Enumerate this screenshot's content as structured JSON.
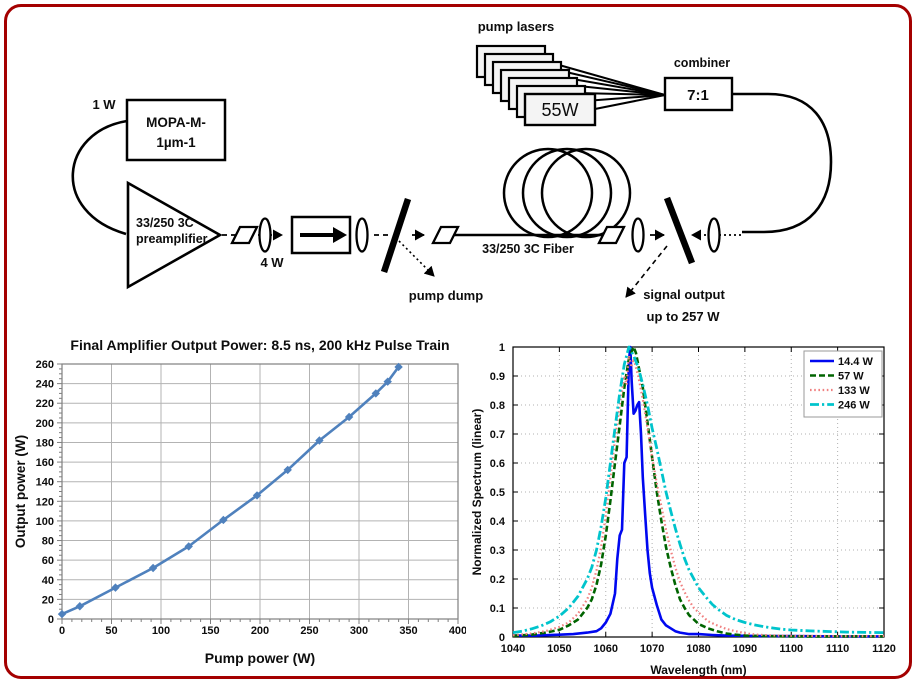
{
  "figure": {
    "background": "#ffffff",
    "border_color": "#a40000"
  },
  "diagram": {
    "labels": {
      "seed_power": "1 W",
      "mopa_box": [
        "MOPA-M-",
        "1µm-1"
      ],
      "preamp": [
        "33/250 3C",
        "preamplifier"
      ],
      "preamp_output_power": "4 W",
      "pump_dump": "pump dump",
      "gain_fiber": "33/250 3C Fiber",
      "pump_lasers": "pump lasers",
      "pump_laser_power": "55W",
      "combiner": "combiner",
      "combiner_ratio": "7:1",
      "signal_output": "signal output",
      "signal_output_power": "up to 257 W"
    }
  },
  "chart_data": [
    {
      "id": "final-amplifier-output-power",
      "type": "line",
      "title": "Final Amplifier Output Power: 8.5 ns, 200 kHz Pulse Train",
      "xlabel": "Pump power (W)",
      "ylabel": "Output power (W)",
      "xlim": [
        0,
        400
      ],
      "ylim": [
        0,
        260
      ],
      "xticks": [
        0,
        50,
        100,
        150,
        200,
        250,
        300,
        350,
        400
      ],
      "xticklabels": [
        "0",
        "50",
        "100",
        "150",
        "200",
        "250",
        "300",
        "350",
        "400"
      ],
      "yticks": [
        0,
        20,
        40,
        60,
        80,
        100,
        120,
        140,
        160,
        180,
        200,
        220,
        240,
        260
      ],
      "yticklabels": [
        "0",
        "20",
        "40",
        "60",
        "80",
        "100",
        "120",
        "140",
        "160",
        "180",
        "200",
        "220",
        "240",
        "260"
      ],
      "grid": "solid",
      "legend": false,
      "series": [
        {
          "name": "Output power",
          "color": "#4f81bd",
          "style": "solid",
          "width": 2.6,
          "marker": "diamond",
          "x": [
            0,
            18,
            54,
            92,
            128,
            163,
            197,
            228,
            260,
            290,
            317,
            329,
            340
          ],
          "y": [
            5,
            13,
            32,
            52,
            74,
            101,
            126,
            152,
            182,
            206,
            230,
            242,
            257
          ]
        }
      ]
    },
    {
      "id": "output-spectra",
      "type": "line",
      "title": "",
      "xlabel": "Wavelength (nm)",
      "ylabel": "Normalized Spectrum (linear)",
      "xlim": [
        1040,
        1120
      ],
      "ylim": [
        0,
        1
      ],
      "xticks": [
        1040,
        1050,
        1060,
        1070,
        1080,
        1090,
        1100,
        1110,
        1120
      ],
      "xticklabels": [
        "1040",
        "1050",
        "1060",
        "1070",
        "1080",
        "1090",
        "1100",
        "1110",
        "1120"
      ],
      "yticks": [
        0,
        0.1,
        0.2,
        0.3,
        0.4,
        0.5,
        0.6,
        0.7,
        0.8,
        0.9,
        1
      ],
      "yticklabels": [
        "0",
        "0.1",
        "0.2",
        "0.3",
        "0.4",
        "0.5",
        "0.6",
        "0.7",
        "0.8",
        "0.9",
        "1"
      ],
      "grid": "dotted",
      "legend": true,
      "legend_position": "top-right",
      "series": [
        {
          "name": "14.4 W",
          "color": "#0008f0",
          "style": "solid",
          "width": 2.6,
          "x": [
            1040,
            1045,
            1050,
            1053,
            1056,
            1058,
            1059,
            1060,
            1061,
            1062,
            1062.5,
            1063,
            1063.5,
            1064,
            1064.5,
            1065,
            1065.3,
            1065.6,
            1066,
            1066.4,
            1066.8,
            1067.2,
            1067.6,
            1068,
            1068.5,
            1069,
            1069.5,
            1070,
            1071,
            1072,
            1073,
            1074,
            1075,
            1076,
            1078,
            1080,
            1083,
            1086,
            1090,
            1095,
            1100,
            1110,
            1120
          ],
          "y": [
            0.005,
            0.005,
            0.008,
            0.01,
            0.015,
            0.02,
            0.03,
            0.05,
            0.08,
            0.15,
            0.27,
            0.35,
            0.37,
            0.6,
            0.62,
            0.95,
            1.0,
            0.88,
            0.77,
            0.78,
            0.8,
            0.81,
            0.7,
            0.55,
            0.42,
            0.3,
            0.22,
            0.17,
            0.11,
            0.06,
            0.04,
            0.03,
            0.02,
            0.015,
            0.01,
            0.01,
            0.007,
            0.005,
            0.004,
            0.003,
            0.003,
            0.002,
            0.002
          ]
        },
        {
          "name": "57 W",
          "color": "#006400",
          "style": "dashed",
          "width": 2.6,
          "x": [
            1040,
            1044,
            1047,
            1050,
            1052,
            1054,
            1056,
            1057,
            1058,
            1059,
            1060,
            1061,
            1062,
            1063,
            1064,
            1065,
            1066,
            1066.5,
            1067,
            1068,
            1069,
            1070,
            1071,
            1072,
            1073,
            1074,
            1075,
            1076,
            1077,
            1078,
            1079,
            1080,
            1082,
            1084,
            1086,
            1088,
            1090,
            1095,
            1100,
            1110,
            1120
          ],
          "y": [
            0.004,
            0.008,
            0.015,
            0.025,
            0.04,
            0.06,
            0.1,
            0.13,
            0.18,
            0.25,
            0.35,
            0.47,
            0.6,
            0.73,
            0.86,
            0.96,
            1.0,
            0.98,
            0.94,
            0.86,
            0.74,
            0.62,
            0.5,
            0.4,
            0.31,
            0.24,
            0.18,
            0.13,
            0.1,
            0.075,
            0.06,
            0.045,
            0.03,
            0.02,
            0.012,
            0.008,
            0.005,
            0.003,
            0.002,
            0.002,
            0.002
          ]
        },
        {
          "name": "133 W",
          "color": "#f08080",
          "style": "dotted",
          "width": 2.2,
          "x": [
            1040,
            1044,
            1047,
            1050,
            1052,
            1054,
            1056,
            1057,
            1058,
            1059,
            1060,
            1061,
            1062,
            1063,
            1064,
            1064.5,
            1065,
            1065.5,
            1066,
            1067,
            1068,
            1069,
            1070,
            1071,
            1072,
            1073,
            1074,
            1075,
            1076,
            1077,
            1078,
            1079,
            1080,
            1081,
            1082,
            1084,
            1086,
            1088,
            1090,
            1092,
            1095,
            1100,
            1110,
            1120
          ],
          "y": [
            0.006,
            0.012,
            0.02,
            0.035,
            0.05,
            0.08,
            0.13,
            0.17,
            0.23,
            0.31,
            0.42,
            0.55,
            0.68,
            0.8,
            0.9,
            0.87,
            0.97,
            0.93,
            0.96,
            0.9,
            0.82,
            0.72,
            0.62,
            0.53,
            0.45,
            0.37,
            0.3,
            0.24,
            0.19,
            0.155,
            0.125,
            0.1,
            0.085,
            0.07,
            0.055,
            0.04,
            0.028,
            0.02,
            0.013,
            0.009,
            0.006,
            0.004,
            0.003,
            0.003
          ]
        },
        {
          "name": "246 W",
          "color": "#00c4cc",
          "style": "dashdot",
          "width": 2.8,
          "x": [
            1040,
            1042,
            1044,
            1046,
            1048,
            1050,
            1052,
            1054,
            1056,
            1057,
            1058,
            1059,
            1060,
            1061,
            1062,
            1063,
            1064,
            1065,
            1066,
            1067,
            1068,
            1069,
            1070,
            1071,
            1072,
            1073,
            1074,
            1075,
            1076,
            1077,
            1078,
            1079,
            1080,
            1081,
            1082,
            1083,
            1084,
            1086,
            1088,
            1090,
            1092,
            1094,
            1096,
            1098,
            1100,
            1104,
            1108,
            1112,
            1116,
            1120
          ],
          "y": [
            0.015,
            0.02,
            0.028,
            0.038,
            0.052,
            0.072,
            0.1,
            0.14,
            0.2,
            0.24,
            0.3,
            0.38,
            0.48,
            0.6,
            0.72,
            0.84,
            0.94,
            1.0,
            0.97,
            0.93,
            0.87,
            0.8,
            0.72,
            0.65,
            0.575,
            0.5,
            0.435,
            0.375,
            0.32,
            0.27,
            0.23,
            0.2,
            0.17,
            0.15,
            0.13,
            0.112,
            0.098,
            0.075,
            0.06,
            0.05,
            0.042,
            0.036,
            0.031,
            0.027,
            0.024,
            0.021,
            0.019,
            0.017,
            0.016,
            0.015
          ]
        }
      ]
    }
  ]
}
